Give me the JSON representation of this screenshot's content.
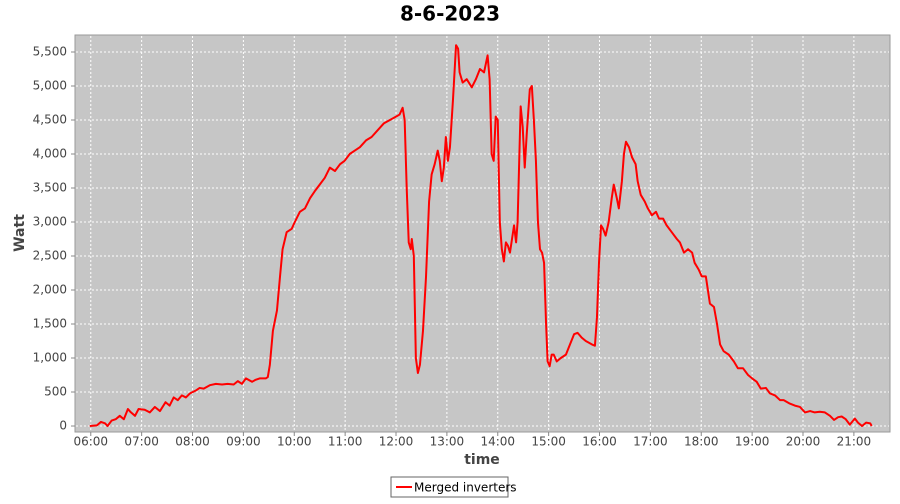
{
  "chart_data": {
    "type": "line",
    "title": "8-6-2023",
    "x_label": "time",
    "y_label": "Watt",
    "xlim": [
      5.69,
      21.71
    ],
    "ylim": [
      -88,
      5750
    ],
    "xticks": [
      {
        "value": 6,
        "label": "06:00"
      },
      {
        "value": 7,
        "label": "07:00"
      },
      {
        "value": 8,
        "label": "08:00"
      },
      {
        "value": 9,
        "label": "09:00"
      },
      {
        "value": 10,
        "label": "10:00"
      },
      {
        "value": 11,
        "label": "11:00"
      },
      {
        "value": 12,
        "label": "12:00"
      },
      {
        "value": 13,
        "label": "13:00"
      },
      {
        "value": 14,
        "label": "14:00"
      },
      {
        "value": 15,
        "label": "15:00"
      },
      {
        "value": 16,
        "label": "16:00"
      },
      {
        "value": 17,
        "label": "17:00"
      },
      {
        "value": 18,
        "label": "18:00"
      },
      {
        "value": 19,
        "label": "19:00"
      },
      {
        "value": 20,
        "label": "20:00"
      },
      {
        "value": 21,
        "label": "21:00"
      }
    ],
    "yticks": [
      0,
      500,
      {
        "value": 1000,
        "label": "1,000"
      },
      {
        "value": 1500,
        "label": "1,500"
      },
      {
        "value": 2000,
        "label": "2,000"
      },
      {
        "value": 2500,
        "label": "2,500"
      },
      {
        "value": 3000,
        "label": "3,000"
      },
      {
        "value": 3500,
        "label": "3,500"
      },
      {
        "value": 4000,
        "label": "4,000"
      },
      {
        "value": 4500,
        "label": "4,500"
      },
      {
        "value": 5000,
        "label": "5,000"
      },
      {
        "value": 5500,
        "label": "5,500"
      }
    ],
    "grid": true,
    "legend": "bottom",
    "x": [
      5.98,
      6.12,
      6.2,
      6.28,
      6.33,
      6.41,
      6.49,
      6.57,
      6.65,
      6.73,
      6.79,
      6.87,
      6.94,
      7.06,
      7.16,
      7.26,
      7.36,
      7.47,
      7.55,
      7.63,
      7.71,
      7.79,
      7.87,
      7.95,
      8.06,
      8.14,
      8.22,
      8.34,
      8.46,
      8.58,
      8.69,
      8.81,
      8.89,
      8.97,
      9.05,
      9.17,
      9.24,
      9.32,
      9.44,
      9.48,
      9.52,
      9.58,
      9.66,
      9.72,
      9.77,
      9.85,
      9.95,
      10.01,
      10.11,
      10.21,
      10.31,
      10.4,
      10.5,
      10.6,
      10.7,
      10.8,
      10.9,
      10.99,
      11.09,
      11.19,
      11.29,
      11.41,
      11.52,
      11.64,
      11.76,
      11.88,
      12.0,
      12.07,
      12.13,
      12.17,
      12.21,
      12.25,
      12.29,
      12.31,
      12.35,
      12.39,
      12.43,
      12.47,
      12.53,
      12.59,
      12.65,
      12.7,
      12.76,
      12.82,
      12.86,
      12.9,
      12.94,
      12.98,
      13.02,
      13.06,
      13.12,
      13.18,
      13.22,
      13.25,
      13.31,
      13.39,
      13.49,
      13.57,
      13.65,
      13.73,
      13.8,
      13.84,
      13.88,
      13.92,
      13.96,
      14.0,
      14.04,
      14.08,
      14.12,
      14.16,
      14.2,
      14.24,
      14.28,
      14.32,
      14.36,
      14.39,
      14.45,
      14.49,
      14.53,
      14.57,
      14.63,
      14.67,
      14.71,
      14.75,
      14.79,
      14.83,
      14.87,
      14.91,
      14.95,
      14.98,
      15.02,
      15.06,
      15.1,
      15.16,
      15.24,
      15.34,
      15.42,
      15.5,
      15.57,
      15.65,
      15.73,
      15.85,
      15.91,
      15.95,
      15.99,
      16.03,
      16.07,
      16.12,
      16.18,
      16.24,
      16.28,
      16.34,
      16.38,
      16.44,
      16.48,
      16.52,
      16.58,
      16.64,
      16.71,
      16.75,
      16.81,
      16.89,
      16.95,
      17.03,
      17.11,
      17.17,
      17.25,
      17.32,
      17.42,
      17.52,
      17.58,
      17.66,
      17.74,
      17.82,
      17.87,
      17.95,
      18.01,
      18.09,
      18.17,
      18.25,
      18.31,
      18.37,
      18.44,
      18.54,
      18.64,
      18.72,
      18.82,
      18.92,
      19.0,
      19.09,
      19.17,
      19.27,
      19.35,
      19.45,
      19.55,
      19.62,
      19.74,
      19.84,
      19.94,
      20.04,
      20.14,
      20.23,
      20.33,
      20.43,
      20.53,
      20.61,
      20.69,
      20.76,
      20.84,
      20.92,
      21.02,
      21.08,
      21.16,
      21.24,
      21.32,
      21.35
    ],
    "series": [
      {
        "name": "Merged inverters",
        "color": "#ff0000",
        "values": [
          0,
          10,
          60,
          40,
          0,
          80,
          100,
          150,
          100,
          250,
          200,
          150,
          250,
          240,
          200,
          280,
          220,
          350,
          300,
          420,
          380,
          450,
          420,
          480,
          520,
          560,
          550,
          600,
          620,
          610,
          620,
          610,
          660,
          620,
          700,
          650,
          680,
          700,
          700,
          720,
          900,
          1400,
          1700,
          2200,
          2600,
          2850,
          2900,
          3000,
          3150,
          3200,
          3350,
          3450,
          3550,
          3650,
          3800,
          3750,
          3850,
          3900,
          4000,
          4050,
          4100,
          4200,
          4250,
          4350,
          4450,
          4500,
          4550,
          4580,
          4680,
          4500,
          3500,
          2700,
          2600,
          2750,
          2500,
          1000,
          780,
          900,
          1400,
          2200,
          3300,
          3700,
          3850,
          4050,
          3900,
          3600,
          3800,
          4250,
          3900,
          4100,
          4800,
          5600,
          5550,
          5200,
          5050,
          5100,
          4980,
          5100,
          5250,
          5200,
          5450,
          5100,
          4000,
          3900,
          4550,
          4500,
          3000,
          2600,
          2420,
          2700,
          2650,
          2550,
          2750,
          2950,
          2700,
          3000,
          4700,
          4400,
          3800,
          4300,
          4950,
          5000,
          4500,
          3900,
          3000,
          2600,
          2550,
          2400,
          1500,
          950,
          880,
          1050,
          1050,
          950,
          1000,
          1050,
          1200,
          1350,
          1370,
          1300,
          1250,
          1200,
          1180,
          1600,
          2400,
          2950,
          2900,
          2800,
          3000,
          3350,
          3550,
          3350,
          3200,
          3600,
          4000,
          4180,
          4100,
          3950,
          3850,
          3600,
          3400,
          3300,
          3200,
          3100,
          3150,
          3050,
          3050,
          2950,
          2850,
          2750,
          2700,
          2550,
          2600,
          2550,
          2400,
          2300,
          2200,
          2200,
          1800,
          1750,
          1500,
          1200,
          1100,
          1050,
          950,
          850,
          850,
          750,
          700,
          650,
          550,
          560,
          480,
          450,
          380,
          380,
          330,
          300,
          280,
          200,
          220,
          200,
          210,
          200,
          150,
          90,
          130,
          140,
          100,
          20,
          110,
          50,
          0,
          50,
          40,
          0
        ]
      }
    ]
  }
}
